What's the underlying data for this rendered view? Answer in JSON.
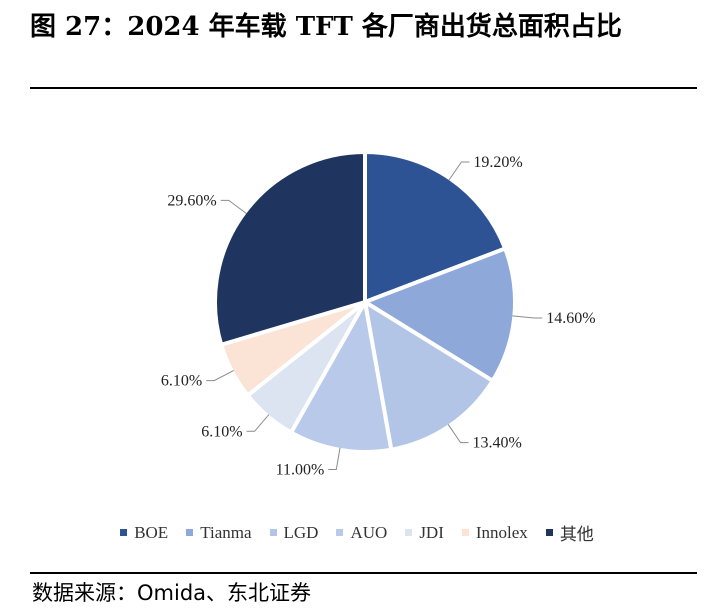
{
  "header": {
    "title": "图 27：2024 年车载 TFT 各厂商出货总面积占比"
  },
  "footer": {
    "source": "数据来源：Omida、东北证券"
  },
  "chart_data": {
    "type": "pie",
    "categories": [
      "BOE",
      "Tianma",
      "LGD",
      "AUO",
      "JDI",
      "Innolex",
      "其他"
    ],
    "values": [
      19.2,
      14.6,
      13.4,
      11.0,
      6.1,
      6.1,
      29.6
    ],
    "data_labels": [
      "19.20%",
      "14.60%",
      "13.40%",
      "11.00%",
      "6.10%",
      "6.10%",
      "29.60%"
    ],
    "colors": [
      "#2e5395",
      "#8ea8d9",
      "#b3c5e6",
      "#b8c9e9",
      "#dce4f2",
      "#fbe3d6",
      "#1f345f"
    ],
    "start_angle": "12 o'clock",
    "direction": "clockwise",
    "legend_position": "bottom"
  }
}
